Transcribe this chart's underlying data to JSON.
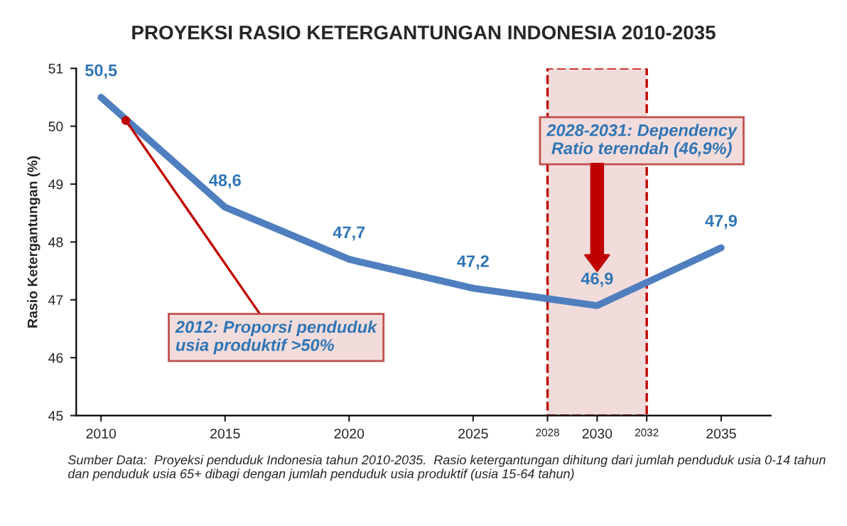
{
  "chart_data": {
    "type": "line",
    "title": "PROYEKSI RASIO KETERGANTUNGAN INDONESIA 2010-2035",
    "ylabel": "Rasio Ketergantungan (%)",
    "x": [
      2010,
      2015,
      2020,
      2025,
      2030,
      2035
    ],
    "series": [
      {
        "color": "#4f7fbf",
        "values": [
          50.5,
          48.6,
          47.7,
          47.2,
          46.9,
          47.9
        ]
      }
    ],
    "value_labels": [
      "50,5",
      "48,6",
      "47,7",
      "47,2",
      "46,9",
      "47,9"
    ],
    "xlim": [
      2009,
      2037
    ],
    "xticks": [
      2010,
      2015,
      2020,
      2025,
      {
        "value": 2028,
        "label": "2028"
      },
      2030,
      {
        "value": 2032,
        "label": "2032"
      },
      2035
    ],
    "ylim": [
      45,
      51
    ],
    "yticks": [
      45,
      46,
      47,
      48,
      49,
      50,
      51
    ],
    "bands": [
      {
        "axis": "x",
        "from": 2028,
        "to": 2032,
        "color": "#f2dcdb"
      }
    ],
    "annotations": [
      {
        "text": "2012: Proporsi penduduk\nusia produktif >50%",
        "x": 2011,
        "y": 50.1
      },
      "2028-2031: Dependency\nRatio terendah (46,9%)",
      "Sumber Data:  Proyeksi penduduk Indonesia tahun 2010-2035.  Rasio ketergantungan dihitung dari jumlah penduduk usia 0-14 tahun dan penduduk usia 65+ dibagi dengan jumlah penduduk usia produktif (usia 15-64 tahun)"
    ],
    "grid": false
  }
}
